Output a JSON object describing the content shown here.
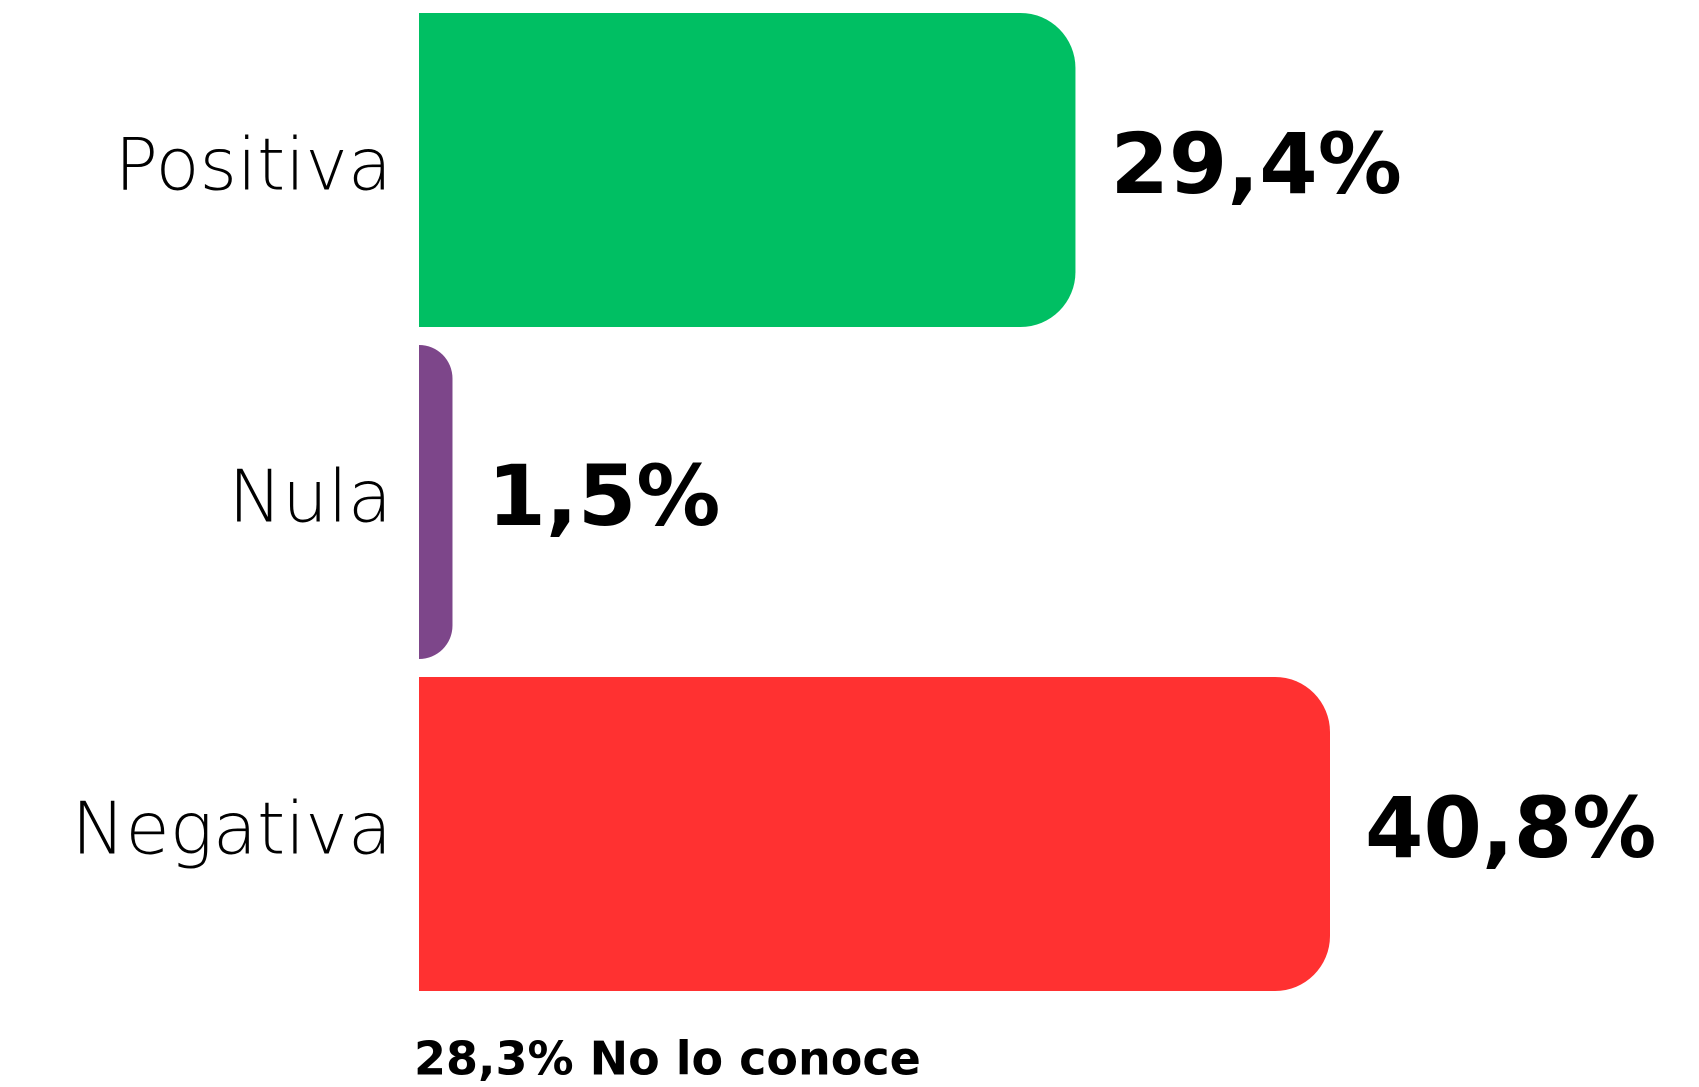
{
  "chart_data": {
    "type": "bar",
    "orientation": "horizontal",
    "categories": [
      "Positiva",
      "Nula",
      "Negativa"
    ],
    "values": [
      29.4,
      1.5,
      40.8
    ],
    "value_labels": [
      "29,4%",
      "1,5%",
      "40,8%"
    ],
    "colors": [
      "#00bf63",
      "#7d468a",
      "#ff3131"
    ],
    "annotation": "28,3% No lo conoce"
  }
}
